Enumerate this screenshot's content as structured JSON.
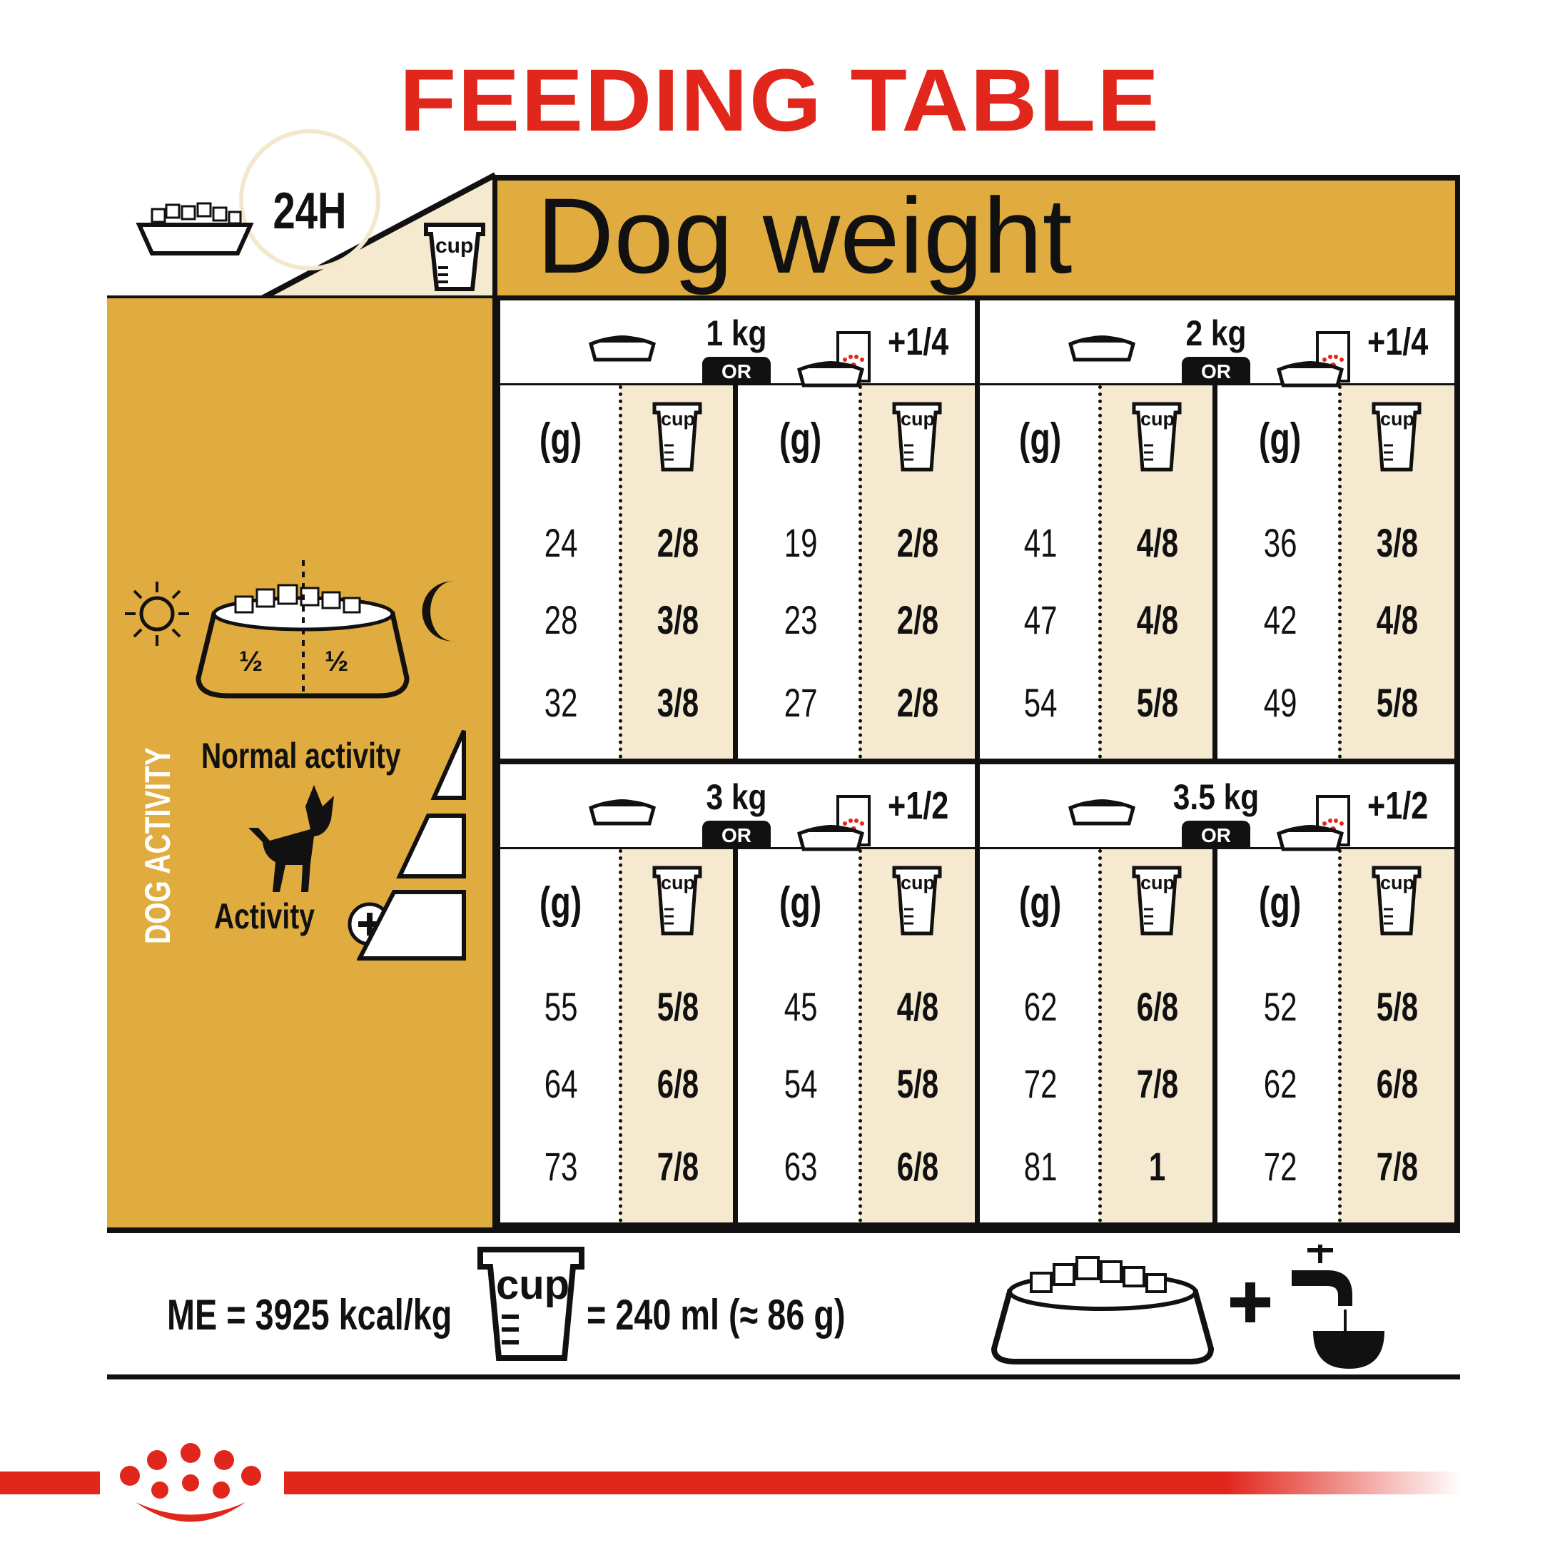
{
  "title": "FEEDING TABLE",
  "header": {
    "dog_weight_label": "Dog weight",
    "time_label": "24H",
    "cup_label": "cup"
  },
  "left_panel": {
    "activity_title": "DOG ACTIVITY",
    "normal_activity": "Normal activity",
    "plus_activity": "Activity",
    "half_left": "½",
    "half_right": "½"
  },
  "blocks": [
    {
      "weight": "1 kg",
      "or": "OR",
      "pouch": "+1/4",
      "cols": [
        {
          "g_label": "(g)",
          "cup_label": "cup",
          "grams": [
            "24",
            "28",
            "32"
          ],
          "cups": [
            "2/8",
            "3/8",
            "3/8"
          ]
        },
        {
          "g_label": "(g)",
          "cup_label": "cup",
          "grams": [
            "19",
            "23",
            "27"
          ],
          "cups": [
            "2/8",
            "2/8",
            "2/8"
          ]
        }
      ]
    },
    {
      "weight": "2 kg",
      "or": "OR",
      "pouch": "+1/4",
      "cols": [
        {
          "g_label": "(g)",
          "cup_label": "cup",
          "grams": [
            "41",
            "47",
            "54"
          ],
          "cups": [
            "4/8",
            "4/8",
            "5/8"
          ]
        },
        {
          "g_label": "(g)",
          "cup_label": "cup",
          "grams": [
            "36",
            "42",
            "49"
          ],
          "cups": [
            "3/8",
            "4/8",
            "5/8"
          ]
        }
      ]
    },
    {
      "weight": "3 kg",
      "or": "OR",
      "pouch": "+1/2",
      "cols": [
        {
          "g_label": "(g)",
          "cup_label": "cup",
          "grams": [
            "55",
            "64",
            "73"
          ],
          "cups": [
            "5/8",
            "6/8",
            "7/8"
          ]
        },
        {
          "g_label": "(g)",
          "cup_label": "cup",
          "grams": [
            "45",
            "54",
            "63"
          ],
          "cups": [
            "4/8",
            "5/8",
            "6/8"
          ]
        }
      ]
    },
    {
      "weight": "3.5 kg",
      "or": "OR",
      "pouch": "+1/2",
      "cols": [
        {
          "g_label": "(g)",
          "cup_label": "cup",
          "grams": [
            "62",
            "72",
            "81"
          ],
          "cups": [
            "6/8",
            "7/8",
            "1"
          ]
        },
        {
          "g_label": "(g)",
          "cup_label": "cup",
          "grams": [
            "52",
            "62",
            "72"
          ],
          "cups": [
            "5/8",
            "6/8",
            "7/8"
          ]
        }
      ]
    }
  ],
  "footer": {
    "me": "ME = 3925 kcal/kg",
    "cup_label": "cup",
    "cup_equivalent": "= 240 ml (≈ 86 g)"
  },
  "colors": {
    "brand_red": "#e1261c",
    "gold": "#e0ab3f",
    "cream": "#f5e9d0"
  }
}
